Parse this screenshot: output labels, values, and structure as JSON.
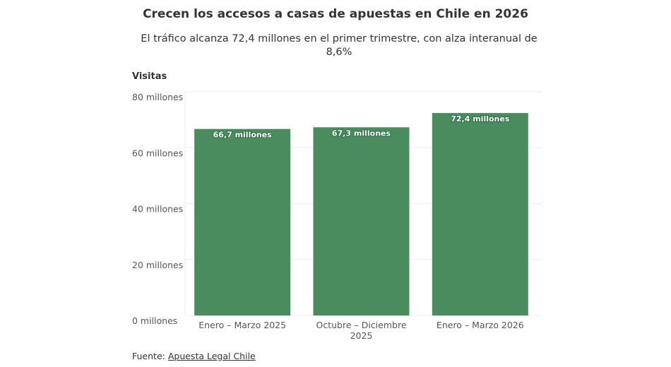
{
  "header": {
    "title": "Crecen los accesos a casas de apuestas en Chile en 2026",
    "subtitle": "El tráfico alcanza 72,4 millones en el primer trimestre, con alza interanual de 8,6%"
  },
  "footer": {
    "source_prefix": "Fuente: ",
    "source_link": "Apuesta Legal Chile"
  },
  "colors": {
    "bar": "#4a8c5e",
    "grid": "#ececec"
  },
  "chart_data": {
    "type": "bar",
    "title": "Crecen los accesos a casas de apuestas en Chile en 2026",
    "subtitle": "El tráfico alcanza 72,4 millones en el primer trimestre, con alza interanual de 8,6%",
    "xlabel": "",
    "ylabel": "Visitas",
    "ylim": [
      0,
      80
    ],
    "yticks": [
      0,
      20,
      40,
      60,
      80
    ],
    "ytick_labels": [
      "0 millones",
      "20 millones",
      "40 millones",
      "60 millones",
      "80 millones"
    ],
    "grid": true,
    "categories": [
      [
        "Enero – Marzo 2025"
      ],
      [
        "Octubre – Diciembre",
        "2025"
      ],
      [
        "Enero – Marzo 2026"
      ]
    ],
    "values": [
      66.7,
      67.3,
      72.4
    ],
    "data_labels": [
      "66,7 millones",
      "67,3 millones",
      "72,4 millones"
    ],
    "units": "millones de visitas"
  }
}
